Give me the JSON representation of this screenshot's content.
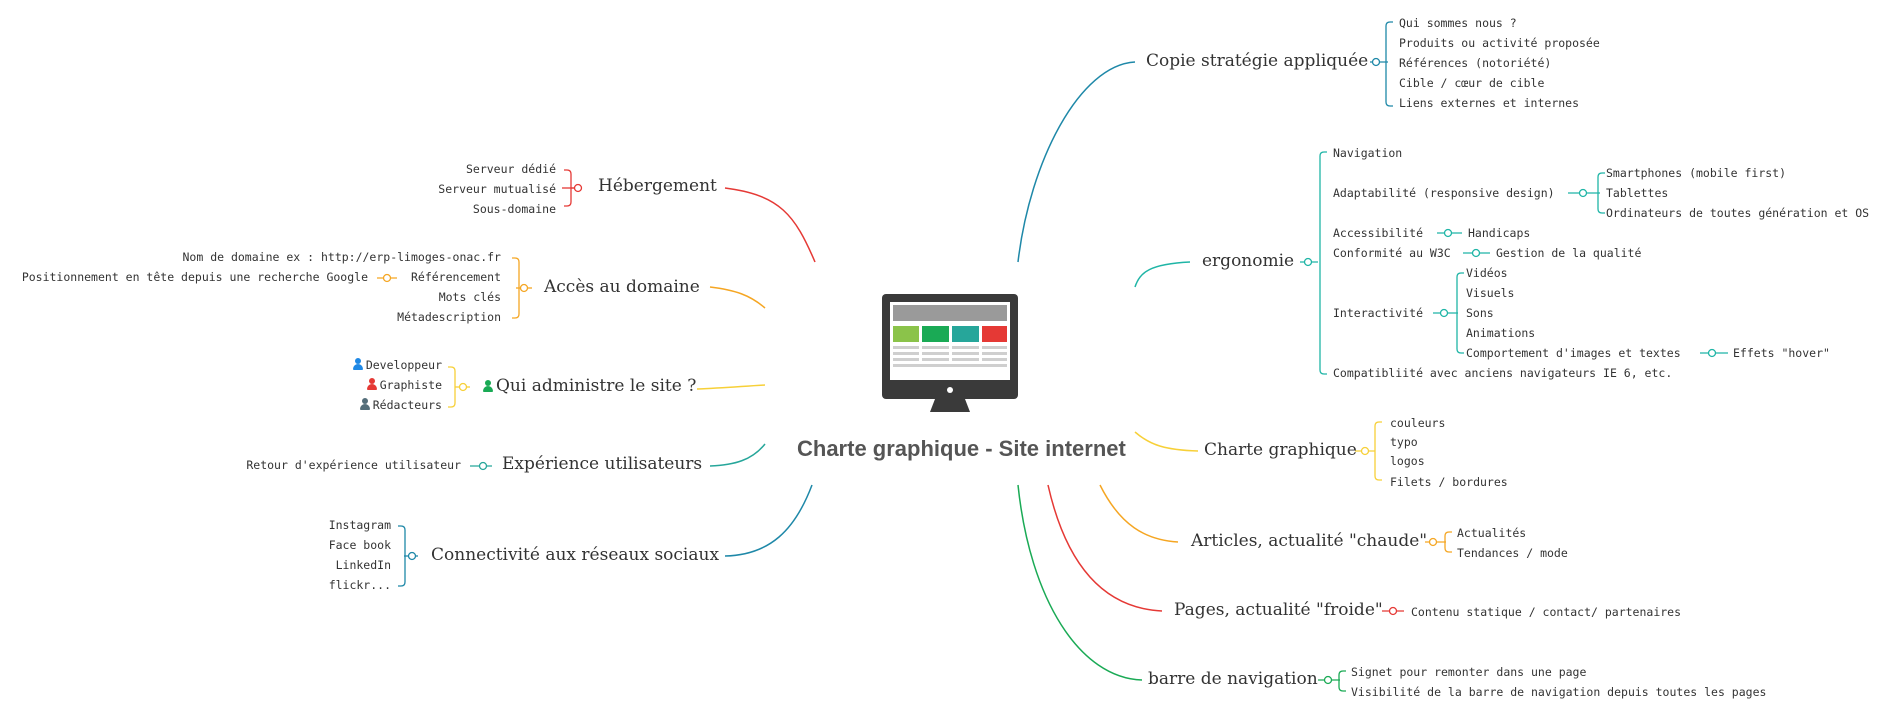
{
  "center": {
    "title": "Charte graphique - Site internet"
  },
  "colors": {
    "red": "#e53935",
    "orange": "#f5a623",
    "yellow": "#f7d038",
    "teal": "#26a69a",
    "blue": "#1e88a8",
    "green": "#1aaa55",
    "cyan": "#1fb5a6",
    "monitor_dark": "#3a3a3a"
  },
  "left": {
    "hebergement": {
      "label": "Hébergement",
      "items": [
        "Serveur dédié",
        "Serveur mutualisé",
        "Sous-domaine"
      ]
    },
    "acces": {
      "label": "Accès au domaine",
      "items": [
        "Nom de domaine ex : http://erp-limoges-onac.fr",
        "Référencement",
        "Mots clés",
        "Métadescription"
      ],
      "referencement_sub": "Positionnement en tête depuis une recherche Google"
    },
    "admin": {
      "label": "Qui administre le site ?",
      "items": [
        "Developpeur",
        "Graphiste",
        "Rédacteurs"
      ]
    },
    "experience": {
      "label": "Expérience utilisateurs",
      "items": [
        "Retour d'expérience utilisateur"
      ]
    },
    "reseaux": {
      "label": "Connectivité aux réseaux sociaux",
      "items": [
        "Instagram",
        "Face book",
        "LinkedIn",
        "flickr..."
      ]
    }
  },
  "right": {
    "copie": {
      "label": "Copie stratégie appliquée",
      "items": [
        "Qui sommes nous ?",
        "Produits ou activité proposée",
        "Références (notoriété)",
        "Cible / cœur de cible",
        "Liens externes et internes"
      ]
    },
    "ergonomie": {
      "label": "ergonomie",
      "items": [
        "Navigation",
        "Adaptabilité (responsive design)",
        "Accessibilité",
        "Conformité au W3C",
        "Interactivité",
        "Compatibliité avec anciens navigateurs IE 6, etc."
      ],
      "adaptabilite_sub": [
        "Smartphones (mobile first)",
        "Tablettes",
        "Ordinateurs de toutes génération et OS"
      ],
      "accessibilite_sub": "Handicaps",
      "w3c_sub": "Gestion de la qualité",
      "interactivite_sub": [
        "Vidéos",
        "Visuels",
        "Sons",
        "Animations",
        "Comportement d'images et textes"
      ],
      "comportement_sub": "Effets \"hover\""
    },
    "charte": {
      "label": "Charte graphique",
      "items": [
        "couleurs",
        "typo",
        "logos",
        "Filets / bordures"
      ]
    },
    "articles": {
      "label": "Articles, actualité \"chaude\"",
      "items": [
        "Actualités",
        "Tendances / mode"
      ]
    },
    "pages": {
      "label": "Pages, actualité \"froide\"",
      "items": [
        "Contenu statique / contact/ partenaires"
      ]
    },
    "barre": {
      "label": "barre de navigation",
      "items": [
        "Signet pour remonter dans une page",
        "Visibilité de la barre de navigation depuis toutes les pages"
      ]
    }
  }
}
